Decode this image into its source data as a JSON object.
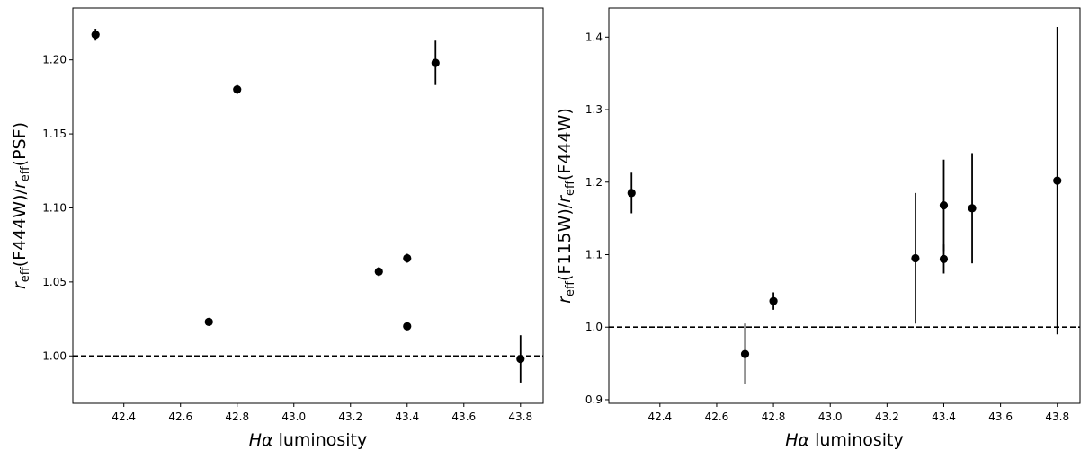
{
  "chart_data": [
    {
      "type": "scatter",
      "title": "",
      "xlabel": "Hα luminosity",
      "xlabel_parts": {
        "symbol": "Hα",
        "rest": " luminosity"
      },
      "ylabel": "r_eff(F444W)/r_eff(PSF)",
      "ylabel_parts": {
        "prefix": "(F444W)/",
        "suffix": "(PSF)"
      },
      "xlim": [
        42.22,
        43.88
      ],
      "ylim": [
        0.968,
        1.235
      ],
      "xticks": [
        42.4,
        42.6,
        42.8,
        43.0,
        43.2,
        43.4,
        43.6,
        43.8
      ],
      "xtick_labels": [
        "42.4",
        "42.6",
        "42.8",
        "43.0",
        "43.2",
        "43.4",
        "43.6",
        "43.8"
      ],
      "yticks": [
        1.0,
        1.05,
        1.1,
        1.15,
        1.2
      ],
      "ytick_labels": [
        "1.00",
        "1.05",
        "1.10",
        "1.15",
        "1.20"
      ],
      "reference_line": 1.0,
      "points": [
        {
          "x": 42.3,
          "y": 1.217,
          "err": 0.004
        },
        {
          "x": 42.7,
          "y": 1.023,
          "err": 0.0
        },
        {
          "x": 42.8,
          "y": 1.18,
          "err": 0.003
        },
        {
          "x": 43.3,
          "y": 1.057,
          "err": 0.003
        },
        {
          "x": 43.4,
          "y": 1.066,
          "err": 0.003
        },
        {
          "x": 43.4,
          "y": 1.02,
          "err": 0.0
        },
        {
          "x": 43.5,
          "y": 1.198,
          "err": 0.015
        },
        {
          "x": 43.8,
          "y": 0.998,
          "err": 0.016
        }
      ],
      "color": "#000000",
      "grid": false
    },
    {
      "type": "scatter",
      "title": "",
      "xlabel": "Hα luminosity",
      "xlabel_parts": {
        "symbol": "Hα",
        "rest": " luminosity"
      },
      "ylabel": "r_eff(F115W)/r_eff(F444W)",
      "ylabel_parts": {
        "prefix": "(F115W)/",
        "suffix": "(F444W)"
      },
      "xlim": [
        42.22,
        43.88
      ],
      "ylim": [
        0.895,
        1.44
      ],
      "xticks": [
        42.4,
        42.6,
        42.8,
        43.0,
        43.2,
        43.4,
        43.6,
        43.8
      ],
      "xtick_labels": [
        "42.4",
        "42.6",
        "42.8",
        "43.0",
        "43.2",
        "43.4",
        "43.6",
        "43.8"
      ],
      "yticks": [
        0.9,
        1.0,
        1.1,
        1.2,
        1.3,
        1.4
      ],
      "ytick_labels": [
        "0.9",
        "1.0",
        "1.1",
        "1.2",
        "1.3",
        "1.4"
      ],
      "reference_line": 1.0,
      "points": [
        {
          "x": 42.3,
          "y": 1.185,
          "err": 0.028
        },
        {
          "x": 42.7,
          "y": 0.963,
          "err": 0.042
        },
        {
          "x": 42.8,
          "y": 1.036,
          "err": 0.012
        },
        {
          "x": 43.3,
          "y": 1.095,
          "err": 0.09
        },
        {
          "x": 43.4,
          "y": 1.168,
          "err": 0.063
        },
        {
          "x": 43.4,
          "y": 1.094,
          "err": 0.02
        },
        {
          "x": 43.5,
          "y": 1.164,
          "err": 0.076
        },
        {
          "x": 43.8,
          "y": 1.202,
          "err": 0.212
        }
      ],
      "color": "#000000",
      "grid": false
    }
  ]
}
